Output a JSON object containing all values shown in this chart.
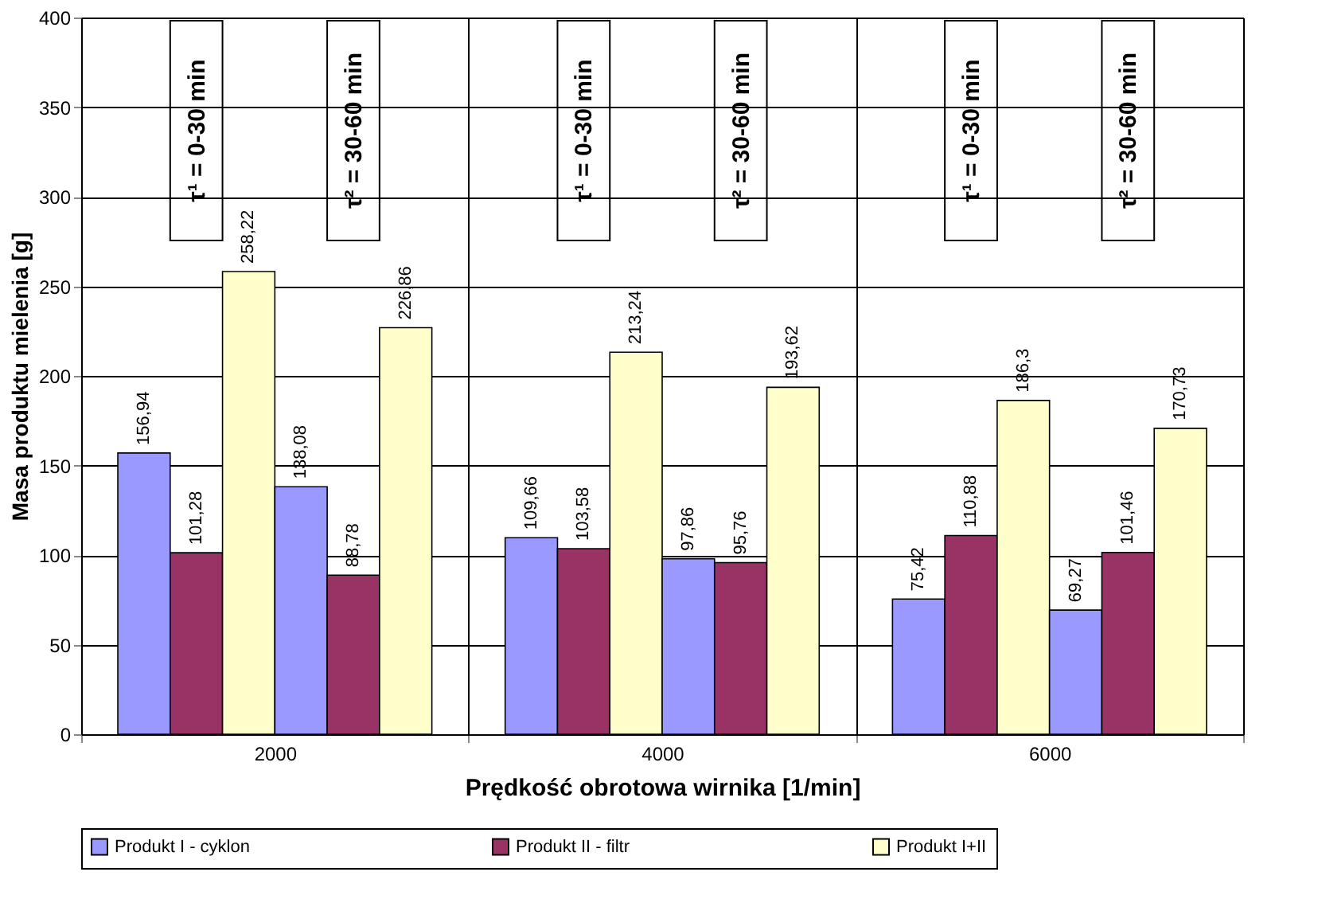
{
  "chart_data": {
    "type": "bar",
    "xlabel": "Prędkość obrotowa wirnika  [1/min]",
    "ylabel": "Masa produktu mielenia [g]",
    "categories": [
      "2000",
      "4000",
      "6000"
    ],
    "series": [
      {
        "name": "Produkt I - cyklon",
        "color": "#9999ff",
        "values": [
          156.94,
          109.66,
          75.42
        ],
        "value_labels": [
          "156,94",
          "109,66",
          "75,42"
        ]
      },
      {
        "name": "Produkt II - filtr",
        "color": "#993366",
        "values": [
          101.28,
          103.58,
          110.88
        ],
        "value_labels": [
          "101,28",
          "103,58",
          "110,88"
        ]
      },
      {
        "name": "Produkt I+II",
        "color": "#ffffcc",
        "values": [
          258.22,
          213.24,
          186.3
        ],
        "value_labels": [
          "258,22",
          "213,24",
          "186,3"
        ]
      },
      {
        "color": "#9999ff",
        "values": [
          138.08,
          97.86,
          69.27
        ],
        "value_labels": [
          "138,08",
          "97,86",
          "69,27"
        ]
      },
      {
        "color": "#993366",
        "values": [
          88.78,
          95.76,
          101.46
        ],
        "value_labels": [
          "88,78",
          "95,76",
          "101,46"
        ]
      },
      {
        "color": "#ffffcc",
        "values": [
          226.86,
          193.62,
          170.73
        ],
        "value_labels": [
          "226,86",
          "193,62",
          "170,73"
        ]
      }
    ],
    "ylim": [
      0,
      400
    ],
    "yticks": [
      0,
      50,
      100,
      150,
      200,
      250,
      300,
      350,
      400
    ],
    "grid": true,
    "legend": "bottom",
    "annotations": [
      "τ¹ = 0-30 min",
      "τ² = 30-60 min",
      "τ¹ = 0-30 min",
      "τ² = 30-60 min",
      "τ¹ = 0-30 min",
      "τ² = 30-60 min"
    ]
  }
}
